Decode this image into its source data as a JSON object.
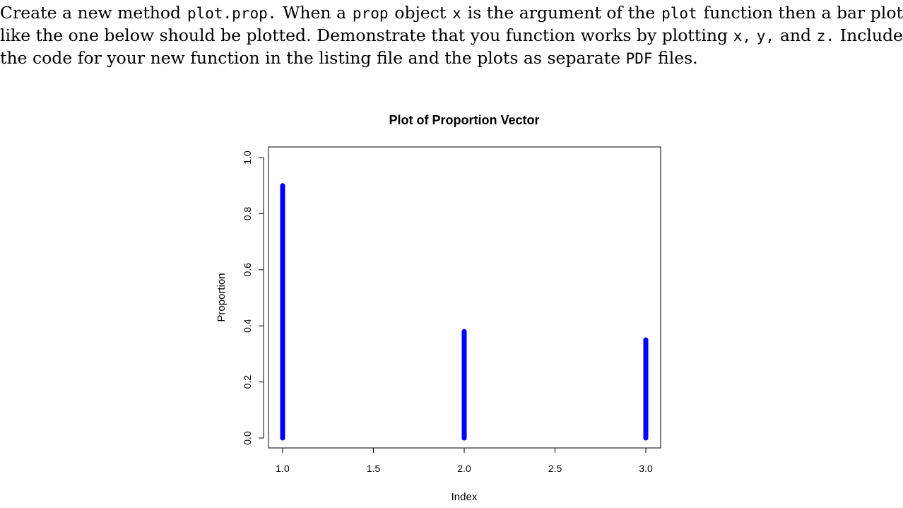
{
  "paragraph": {
    "words": [
      "Create",
      "a",
      "new",
      "method",
      "plot.prop.",
      "When",
      "a",
      "prop",
      "object",
      "x",
      "is",
      "the",
      "argument",
      "of",
      "the",
      "plot",
      "function",
      "then",
      "a",
      "bar",
      "plot",
      "like",
      "the",
      "one",
      "below",
      "should",
      "be",
      "plotted.",
      "Demonstrate",
      "that",
      "you",
      "function",
      "works",
      "by",
      "plotting",
      "x,",
      "y,",
      "and",
      "z.",
      "Include",
      "the",
      "code",
      "for",
      "your",
      "new",
      "function",
      "in",
      "the",
      "listing",
      "file",
      "and",
      "the",
      "plots",
      "as",
      "separate",
      "PDF",
      "files."
    ]
  },
  "chart_data": {
    "type": "bar",
    "title": "Plot of Proportion Vector",
    "xlabel": "Index",
    "ylabel": "Proportion",
    "x": [
      1,
      2,
      3
    ],
    "values": [
      0.9,
      0.38,
      0.35
    ],
    "xlim": [
      1,
      3
    ],
    "ylim": [
      0,
      1
    ],
    "xticks": [
      "1.0",
      "1.5",
      "2.0",
      "2.5",
      "3.0"
    ],
    "yticks": [
      "0.0",
      "0.2",
      "0.4",
      "0.6",
      "0.8",
      "1.0"
    ],
    "bar_color": "#0000ff",
    "grid": false
  }
}
